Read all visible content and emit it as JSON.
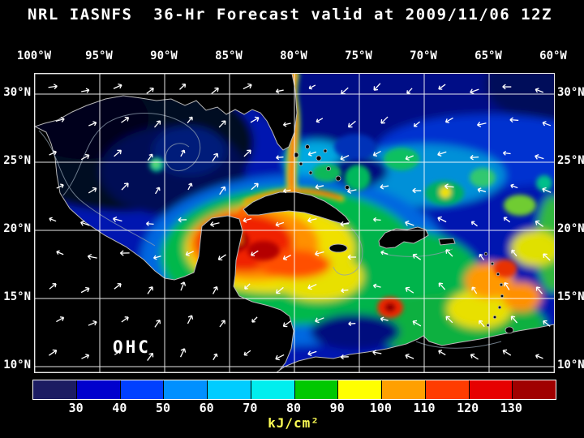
{
  "title": "NRL IASNFS  36-Hr Forecast valid at 2009/11/06 12Z",
  "map": {
    "label": "OHC",
    "lon_ticks": [
      "100°W",
      "95°W",
      "90°W",
      "85°W",
      "80°W",
      "75°W",
      "70°W",
      "65°W",
      "60°W"
    ],
    "lat_ticks": [
      "30°N",
      "25°N",
      "20°N",
      "15°N",
      "10°N"
    ]
  },
  "colorbar": {
    "tick_labels": [
      "30",
      "40",
      "50",
      "60",
      "70",
      "80",
      "90",
      "100",
      "110",
      "120",
      "130"
    ],
    "unit": "kJ/cm²",
    "colors": [
      "#1c1c62",
      "#0000cd",
      "#0040ff",
      "#0090ff",
      "#00ccff",
      "#00eeee",
      "#00c800",
      "#ffff00",
      "#ffa000",
      "#ff3c00",
      "#e60000",
      "#a00000"
    ]
  },
  "chart_data": {
    "type": "heatmap",
    "variable": "OHC",
    "units": "kJ/cm²",
    "value_ticks": [
      30,
      40,
      50,
      60,
      70,
      80,
      90,
      100,
      110,
      120,
      130
    ],
    "lon_range_deg_w": [
      100,
      60
    ],
    "lat_range_deg_n": [
      10,
      30
    ],
    "overlay": "wind-vector-arrows"
  }
}
